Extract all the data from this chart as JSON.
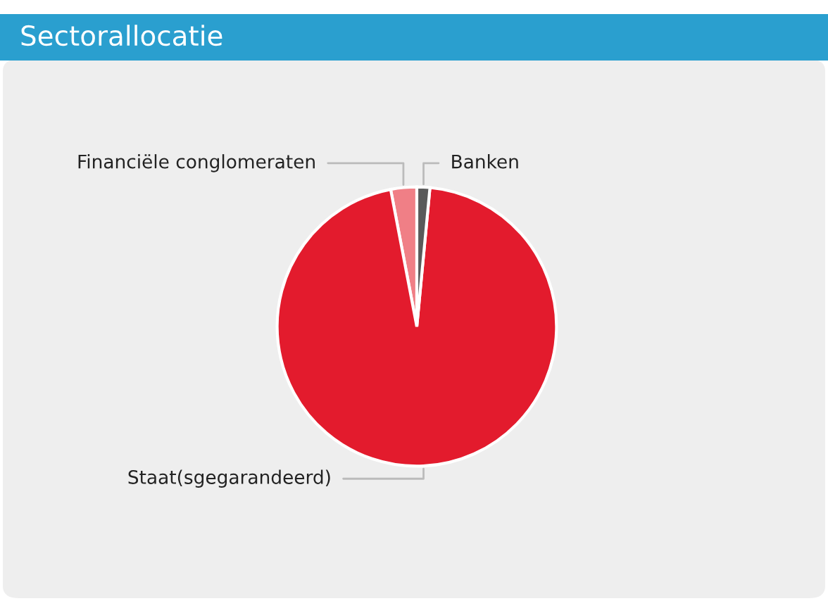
{
  "chart_data": {
    "type": "pie",
    "title": "Sectorallocatie",
    "categories": [
      "Financiële conglomeraten",
      "Staat(sgegarandeerd)",
      "Banken"
    ],
    "values": [
      3,
      95.5,
      1.5
    ],
    "colors": [
      "#f07f86",
      "#e31b2d",
      "#5a5a5a"
    ],
    "legend": false
  }
}
